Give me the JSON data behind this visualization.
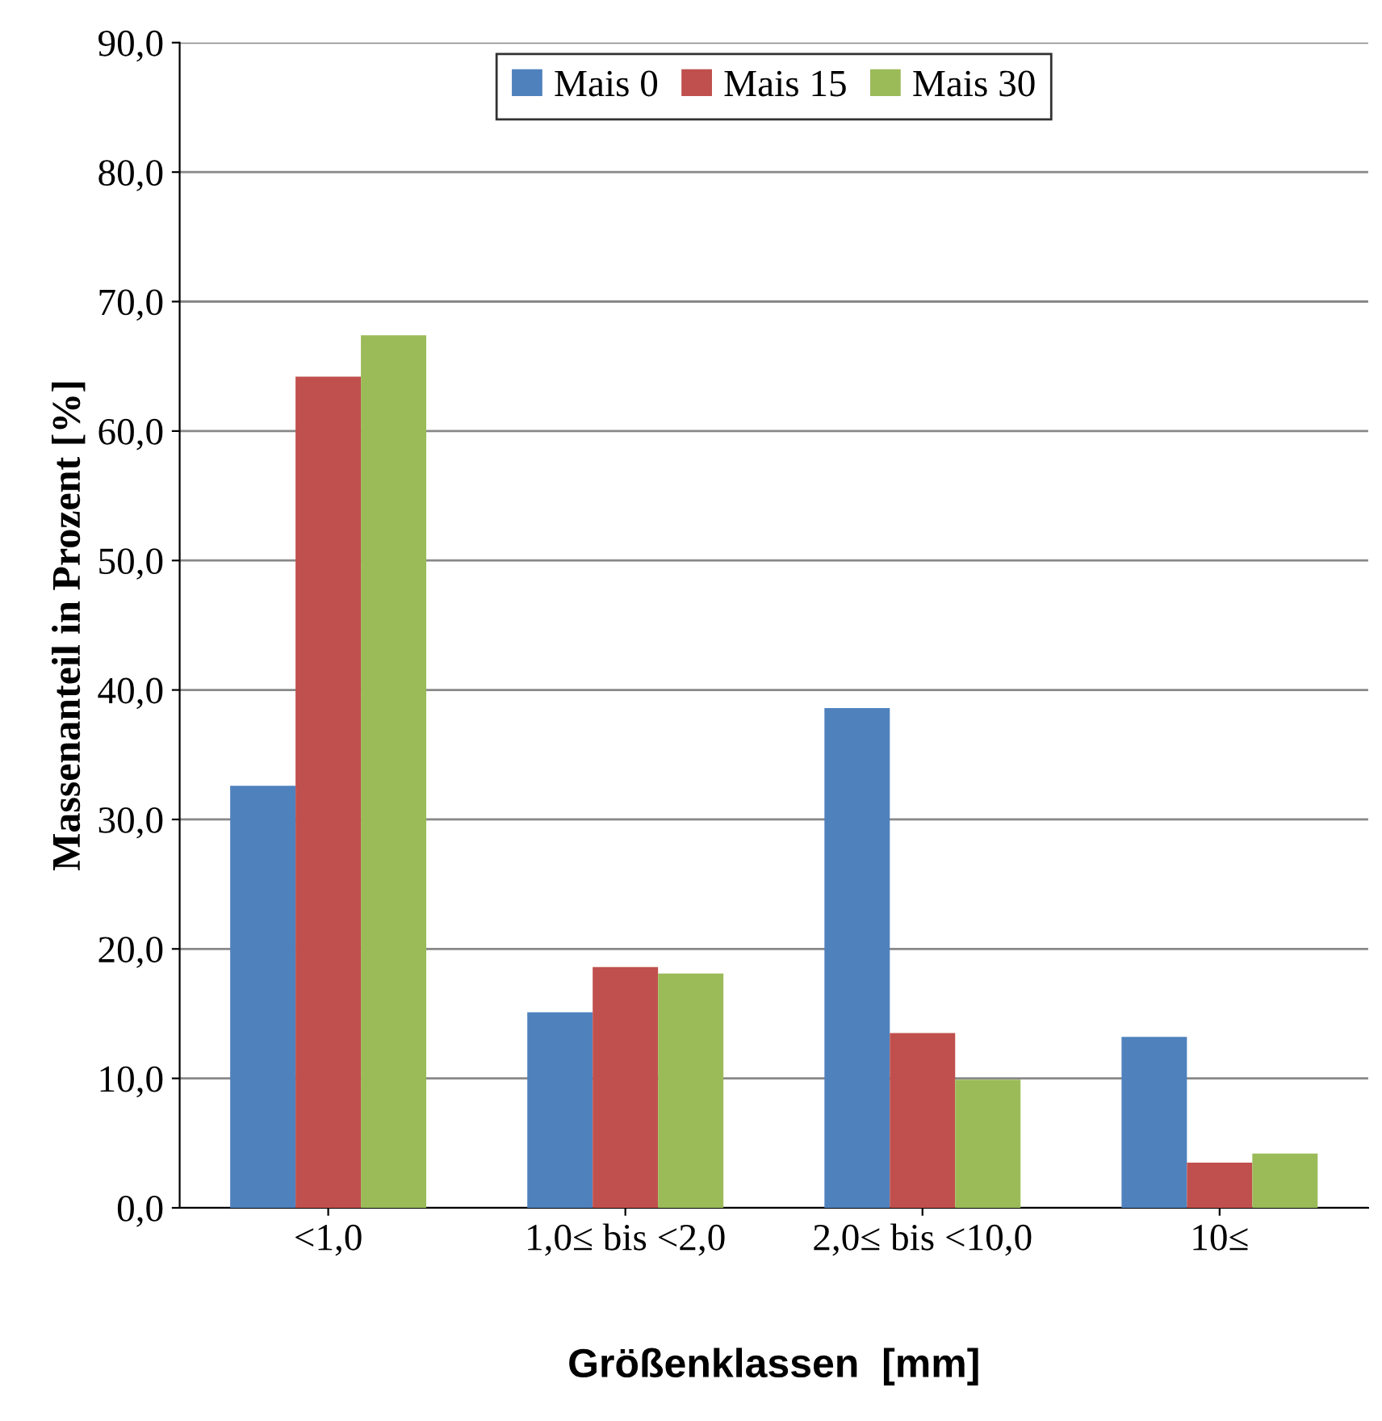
{
  "chart_data": {
    "type": "bar",
    "xlabel": "Größenklassen  [mm]",
    "ylabel": "Massenanteil in Prozent [%]",
    "categories": [
      "<1,0",
      "1,0≤ bis <2,0",
      "2,0≤ bis <10,0",
      "10≤"
    ],
    "series": [
      {
        "name": "Mais 0",
        "color": "#4f81bd",
        "values": [
          32.6,
          15.1,
          38.6,
          13.2
        ]
      },
      {
        "name": "Mais 15",
        "color": "#c0504d",
        "values": [
          64.2,
          18.6,
          13.5,
          3.5
        ]
      },
      {
        "name": "Mais 30",
        "color": "#9bbb59",
        "values": [
          67.4,
          18.1,
          9.9,
          4.2
        ]
      }
    ],
    "ylim": [
      0,
      90
    ],
    "yticks": [
      {
        "value": 0,
        "label": "0,0"
      },
      {
        "value": 10,
        "label": "10,0"
      },
      {
        "value": 20,
        "label": "20,0"
      },
      {
        "value": 30,
        "label": "30,0"
      },
      {
        "value": 40,
        "label": "40,0"
      },
      {
        "value": 50,
        "label": "50,0"
      },
      {
        "value": 60,
        "label": "60,0"
      },
      {
        "value": 70,
        "label": "70,0"
      },
      {
        "value": 80,
        "label": "80,0"
      },
      {
        "value": 90,
        "label": "90,0"
      }
    ],
    "grid": "y",
    "legend": "top"
  }
}
